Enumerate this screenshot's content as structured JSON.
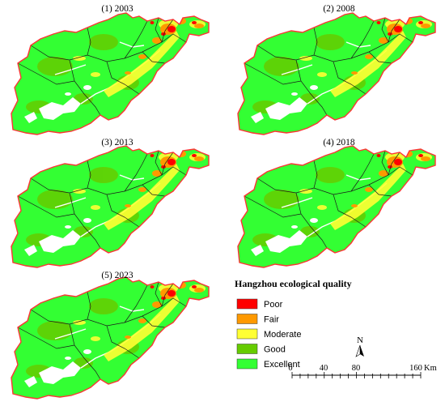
{
  "panels": [
    {
      "label": "(1) 2003"
    },
    {
      "label": "(2) 2008"
    },
    {
      "label": "(3) 2013"
    },
    {
      "label": "(4) 2018"
    },
    {
      "label": "(5) 2023"
    }
  ],
  "legend": {
    "title": "Hangzhou ecological quality",
    "items": [
      {
        "label": "Poor",
        "color": "#ff0000"
      },
      {
        "label": "Fair",
        "color": "#ff9900"
      },
      {
        "label": "Moderate",
        "color": "#ffff33"
      },
      {
        "label": "Good",
        "color": "#66cc00"
      },
      {
        "label": "Excellent",
        "color": "#33ff33"
      }
    ]
  },
  "north_arrow": {
    "label": "N"
  },
  "scale_bar": {
    "ticks": [
      "0",
      "40",
      "80",
      "160"
    ],
    "unit": "Km"
  }
}
